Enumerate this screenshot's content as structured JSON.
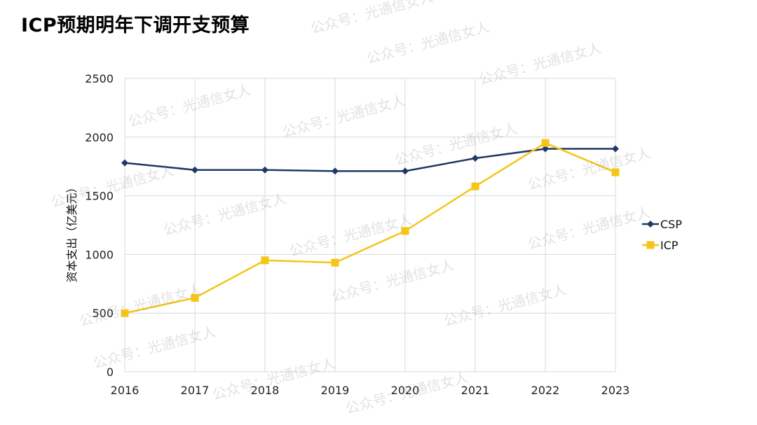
{
  "page": {
    "title": "ICP预期明年下调开支预算",
    "watermark": "公众号：光通信女人"
  },
  "chart_data": {
    "type": "line",
    "title": "",
    "xlabel": "",
    "ylabel": "资本支出（亿美元）",
    "categories": [
      "2016",
      "2017",
      "2018",
      "2019",
      "2020",
      "2021",
      "2022",
      "2023"
    ],
    "ylim": [
      0,
      2500
    ],
    "yticks": [
      0,
      500,
      1000,
      1500,
      2000,
      2500
    ],
    "grid": "vertical and horizontal",
    "legend_position": "right",
    "series": [
      {
        "name": "CSP",
        "marker": "diamond",
        "color": "#1F3864",
        "values": [
          1780,
          1720,
          1720,
          1710,
          1710,
          1820,
          1900,
          1900
        ]
      },
      {
        "name": "ICP",
        "marker": "square",
        "color": "#F5C518",
        "values": [
          500,
          630,
          950,
          930,
          1200,
          1580,
          1950,
          1700
        ]
      }
    ]
  }
}
